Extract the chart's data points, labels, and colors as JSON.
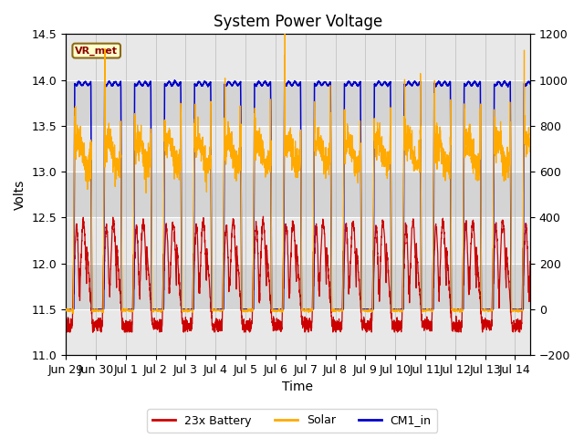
{
  "title": "System Power Voltage",
  "xlabel": "Time",
  "ylabel_left": "Volts",
  "xlim": [
    0,
    15.5
  ],
  "ylim_left": [
    11.0,
    14.5
  ],
  "ylim_right": [
    -200,
    1200
  ],
  "yticks_left": [
    11.0,
    11.5,
    12.0,
    12.5,
    13.0,
    13.5,
    14.0,
    14.5
  ],
  "yticks_right": [
    -200,
    0,
    200,
    400,
    600,
    800,
    1000,
    1200
  ],
  "xtick_labels": [
    "Jun 29",
    "Jun 30",
    "Jul 1",
    "Jul 2",
    "Jul 3",
    "Jul 4",
    "Jul 5",
    "Jul 6",
    "Jul 7",
    "Jul 8",
    "Jul 9",
    "Jul 10",
    "Jul 11",
    "Jul 12",
    "Jul 13",
    "Jul 14"
  ],
  "xtick_positions": [
    0,
    1,
    2,
    3,
    4,
    5,
    6,
    7,
    8,
    9,
    10,
    11,
    12,
    13,
    14,
    15
  ],
  "battery_color": "#cc0000",
  "solar_color": "#ffaa00",
  "cm1_color": "#0000cc",
  "battery_label": "23x Battery",
  "solar_label": "Solar",
  "cm1_label": "CM1_in",
  "annotation_text": "VR_met",
  "bg_stripe_color": "#e0e0e0",
  "plot_bg_color": "#d8d8d8",
  "grid_color": "#ffffff",
  "title_fontsize": 12,
  "axis_fontsize": 10,
  "tick_fontsize": 9
}
